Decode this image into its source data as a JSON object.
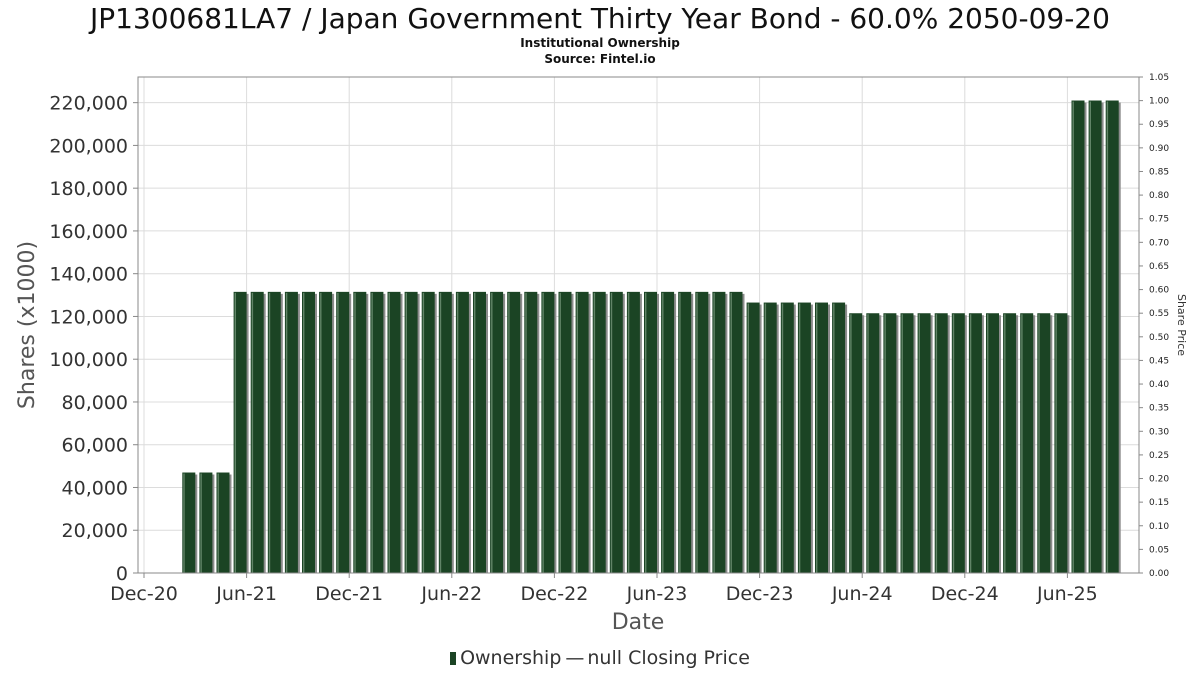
{
  "title": "JP1300681LA7 / Japan Government Thirty Year Bond - 60.0% 2050-09-20",
  "subtitle": "Institutional Ownership",
  "source": "Source: Fintel.io",
  "legend": {
    "ownership": "Ownership",
    "price_symbol": "—",
    "price": "null Closing Price"
  },
  "colors": {
    "bar": "#1b4424",
    "bar_shadow": "#8c8c8c",
    "grid": "#dcdcdc",
    "axis": "#888888"
  },
  "chart_data": {
    "type": "bar",
    "xlabel": "Date",
    "ylabel": "Shares (x1000)",
    "y2label": "Share Price",
    "ylim": [
      0,
      232000
    ],
    "y2lim": [
      0,
      1.05
    ],
    "yticks": [
      "0",
      "20,000",
      "40,000",
      "60,000",
      "80,000",
      "100,000",
      "120,000",
      "140,000",
      "160,000",
      "180,000",
      "200,000",
      "220,000"
    ],
    "y2ticks": [
      "0.00",
      "0.05",
      "0.10",
      "0.15",
      "0.20",
      "0.25",
      "0.30",
      "0.35",
      "0.40",
      "0.45",
      "0.50",
      "0.55",
      "0.60",
      "0.65",
      "0.70",
      "0.75",
      "0.80",
      "0.85",
      "0.90",
      "0.95",
      "1.00",
      "1.05"
    ],
    "xticks": [
      "Dec-20",
      "Jun-21",
      "Dec-21",
      "Jun-22",
      "Dec-22",
      "Jun-23",
      "Dec-23",
      "Jun-24",
      "Dec-24",
      "Jun-25"
    ],
    "grid": true,
    "legend_position": "bottom",
    "series": [
      {
        "name": "Ownership",
        "values": [
          47000,
          47000,
          47000,
          131500,
          131500,
          131500,
          131500,
          131500,
          131500,
          131500,
          131500,
          131500,
          131500,
          131500,
          131500,
          131500,
          131500,
          131500,
          131500,
          131500,
          131500,
          131500,
          131500,
          131500,
          131500,
          131500,
          131500,
          131500,
          131500,
          131500,
          131500,
          131500,
          131500,
          126500,
          126500,
          126500,
          126500,
          126500,
          126500,
          121500,
          121500,
          121500,
          121500,
          121500,
          121500,
          121500,
          121500,
          121500,
          121500,
          121500,
          121500,
          121500,
          221000,
          221000,
          221000
        ]
      }
    ]
  }
}
